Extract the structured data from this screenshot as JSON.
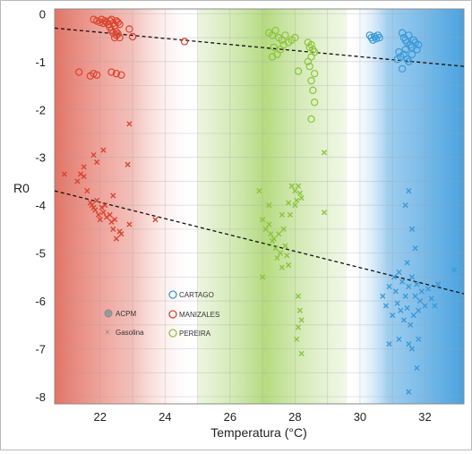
{
  "chart_data": {
    "type": "scatter",
    "xlabel": "Temperatura (°C)",
    "ylabel": "R0",
    "xlim": [
      20.6,
      33.2
    ],
    "ylim": [
      -8.15,
      0.1
    ],
    "x_ticks": [
      22,
      24,
      26,
      28,
      30,
      32
    ],
    "y_ticks": [
      0,
      -1,
      -2,
      -3,
      -4,
      -5,
      -6,
      -7,
      -8
    ],
    "grid": true,
    "legend_marker": {
      "position": "bottom-left",
      "entries": [
        {
          "label": "ACPM",
          "marker": "circle-filled"
        },
        {
          "label": "Gasolina",
          "marker": "x"
        }
      ]
    },
    "legend_city": {
      "position": "bottom-center",
      "entries": [
        {
          "label": "CARTAGO",
          "color": "#3a9ad9"
        },
        {
          "label": "MANIZALES",
          "color": "#d9452f"
        },
        {
          "label": "PEREIRA",
          "color": "#8cc43c"
        }
      ]
    },
    "regions": [
      {
        "city": "MANIZALES",
        "color": "#e0574a",
        "x_range": [
          20.6,
          25.0
        ]
      },
      {
        "city": "PEREIRA",
        "color": "#9ccf55",
        "x_range": [
          25.0,
          29.6
        ]
      },
      {
        "city": "CARTAGO",
        "color": "#4aa3e0",
        "x_range": [
          29.6,
          33.2
        ]
      }
    ],
    "trendlines": [
      {
        "fuel": "ACPM",
        "x": [
          20.6,
          33.2
        ],
        "y": [
          -0.3,
          -1.1
        ]
      },
      {
        "fuel": "Gasolina",
        "x": [
          20.6,
          33.2
        ],
        "y": [
          -3.7,
          -5.85
        ]
      }
    ],
    "series": [
      {
        "city": "MANIZALES",
        "fuel": "ACPM",
        "color": "#d9452f",
        "marker": "circle",
        "x": [
          21.8,
          21.9,
          22.0,
          22.05,
          22.1,
          22.15,
          22.2,
          22.25,
          22.3,
          22.35,
          22.4,
          22.45,
          22.5,
          22.55,
          22.6,
          22.4,
          22.5,
          22.6,
          22.45,
          22.55,
          22.9,
          23.0,
          22.35,
          22.5,
          22.3,
          21.7,
          21.8,
          21.9,
          21.35,
          22.35,
          22.5,
          22.65,
          24.6
        ],
        "y": [
          -0.12,
          -0.15,
          -0.18,
          -0.12,
          -0.2,
          -0.15,
          -0.18,
          -0.22,
          -0.15,
          -0.12,
          -0.2,
          -0.25,
          -0.15,
          -0.18,
          -0.22,
          -0.4,
          -0.45,
          -0.5,
          -0.5,
          -0.42,
          -0.32,
          -0.48,
          -0.35,
          -0.38,
          -0.28,
          -1.3,
          -1.25,
          -1.28,
          -1.22,
          -1.22,
          -1.25,
          -1.28,
          -0.58
        ]
      },
      {
        "city": "MANIZALES",
        "fuel": "Gasolina",
        "color": "#d9452f",
        "marker": "x",
        "x": [
          20.9,
          21.3,
          21.4,
          21.5,
          21.6,
          21.7,
          21.75,
          21.8,
          21.85,
          21.9,
          21.95,
          22.0,
          22.05,
          22.1,
          22.15,
          22.2,
          22.3,
          22.35,
          22.4,
          22.45,
          22.5,
          22.6,
          22.65,
          22.9,
          23.7,
          21.8,
          21.9,
          22.1,
          22.9,
          22.85,
          22.4,
          21.5
        ],
        "y": [
          -3.35,
          -3.5,
          -3.35,
          -3.4,
          -3.7,
          -3.95,
          -4.0,
          -4.05,
          -4.1,
          -3.9,
          -4.2,
          -4.3,
          -4.05,
          -4.15,
          -4.0,
          -4.25,
          -4.2,
          -4.35,
          -4.5,
          -4.3,
          -4.7,
          -4.55,
          -4.6,
          -4.4,
          -4.3,
          -2.95,
          -3.1,
          -2.85,
          -2.3,
          -3.15,
          -3.8,
          -3.2
        ]
      },
      {
        "city": "PEREIRA",
        "fuel": "ACPM",
        "color": "#8cc43c",
        "marker": "circle",
        "x": [
          27.2,
          27.3,
          27.4,
          27.5,
          27.6,
          27.7,
          27.8,
          27.9,
          28.0,
          27.35,
          27.45,
          27.55,
          27.65,
          28.4,
          28.45,
          28.5,
          28.55,
          28.6,
          28.5,
          28.4,
          28.45,
          28.6,
          27.3,
          28.1,
          28.5,
          28.55,
          28.6,
          28.5
        ],
        "y": [
          -0.4,
          -0.45,
          -0.35,
          -0.5,
          -0.55,
          -0.45,
          -0.6,
          -0.55,
          -0.5,
          -0.7,
          -0.85,
          -0.75,
          -0.65,
          -0.6,
          -0.7,
          -0.65,
          -0.75,
          -0.8,
          -0.9,
          -1.0,
          -1.1,
          -1.25,
          -0.9,
          -1.2,
          -1.4,
          -1.6,
          -1.85,
          -2.2
        ]
      },
      {
        "city": "PEREIRA",
        "fuel": "Gasolina",
        "color": "#8cc43c",
        "marker": "x",
        "x": [
          26.9,
          27.0,
          27.1,
          27.2,
          27.25,
          27.3,
          27.35,
          27.4,
          27.45,
          27.5,
          27.55,
          27.6,
          27.65,
          27.7,
          27.75,
          27.8,
          27.85,
          27.9,
          28.0,
          28.05,
          28.1,
          28.15,
          28.2,
          28.1,
          28.15,
          28.2,
          28.1,
          28.05,
          28.2,
          28.9,
          28.9,
          27.0,
          27.2,
          27.6,
          27.8,
          28.0
        ],
        "y": [
          -3.7,
          -4.3,
          -4.5,
          -4.4,
          -4.6,
          -4.75,
          -4.7,
          -4.9,
          -5.1,
          -4.6,
          -5.0,
          -5.3,
          -4.5,
          -4.85,
          -5.05,
          -5.25,
          -4.2,
          -3.6,
          -3.7,
          -3.9,
          -3.6,
          -3.75,
          -3.85,
          -5.9,
          -6.2,
          -6.4,
          -6.55,
          -6.8,
          -7.1,
          -2.9,
          -4.15,
          -5.5,
          -4.0,
          -4.2,
          -3.95,
          -4.0
        ]
      },
      {
        "city": "CARTAGO",
        "fuel": "ACPM",
        "color": "#3a9ad9",
        "marker": "circle",
        "x": [
          30.3,
          30.35,
          30.4,
          30.45,
          30.5,
          30.55,
          30.6,
          31.3,
          31.35,
          31.4,
          31.45,
          31.5,
          31.55,
          31.6,
          31.65,
          31.7,
          31.75,
          31.8,
          31.2,
          31.25,
          31.35,
          31.45,
          31.5,
          31.6,
          31.3,
          31.4,
          31.15
        ],
        "y": [
          -0.45,
          -0.5,
          -0.55,
          -0.48,
          -0.52,
          -0.45,
          -0.5,
          -0.4,
          -0.5,
          -0.55,
          -0.6,
          -0.45,
          -0.65,
          -0.7,
          -0.55,
          -0.6,
          -0.75,
          -0.65,
          -0.8,
          -0.9,
          -0.85,
          -0.95,
          -1.0,
          -0.85,
          -1.15,
          -0.75,
          -0.95
        ]
      },
      {
        "city": "CARTAGO",
        "fuel": "Gasolina",
        "color": "#3a9ad9",
        "marker": "x",
        "x": [
          30.7,
          30.8,
          30.9,
          31.0,
          31.05,
          31.1,
          31.15,
          31.2,
          31.25,
          31.3,
          31.35,
          31.4,
          31.45,
          31.5,
          31.55,
          31.6,
          31.65,
          31.7,
          31.75,
          31.8,
          31.85,
          31.9,
          32.0,
          32.1,
          32.2,
          32.3,
          32.4,
          32.9,
          30.9,
          31.2,
          31.5,
          31.6,
          31.4,
          31.6,
          31.5,
          31.7,
          31.8,
          31.75,
          31.5,
          31.45
        ],
        "y": [
          -5.9,
          -6.1,
          -5.7,
          -6.3,
          -5.5,
          -5.8,
          -6.05,
          -5.4,
          -6.2,
          -5.6,
          -6.4,
          -5.9,
          -6.15,
          -5.7,
          -6.5,
          -5.5,
          -6.3,
          -5.9,
          -5.65,
          -6.2,
          -6.0,
          -5.8,
          -6.1,
          -5.75,
          -5.95,
          -6.1,
          -5.65,
          -5.35,
          -6.9,
          -6.8,
          -6.9,
          -7.0,
          -4.0,
          -4.5,
          -3.7,
          -4.9,
          -6.8,
          -7.4,
          -7.9,
          -5.2
        ]
      }
    ]
  }
}
